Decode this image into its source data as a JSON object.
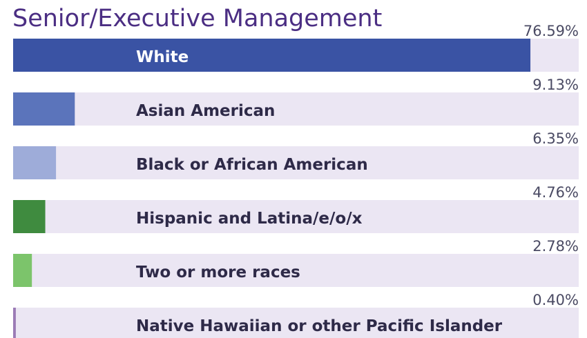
{
  "chart_data": {
    "type": "bar",
    "orientation": "horizontal",
    "title": "Senior/Executive Management",
    "categories": [
      "White",
      "Asian American",
      "Black or African American",
      "Hispanic and Latina/e/o/x",
      "Two or more races",
      "Native Hawaiian or other Pacific Islander"
    ],
    "values": [
      76.59,
      9.13,
      6.35,
      4.76,
      2.78,
      0.4
    ],
    "value_labels": [
      "76.59%",
      "9.13%",
      "6.35%",
      "4.76%",
      "2.78%",
      "0.40%"
    ],
    "colors": [
      "#3a53a4",
      "#5b74bb",
      "#9eacd9",
      "#3f8b3f",
      "#7cc46b",
      "#9b7bb6"
    ]
  }
}
